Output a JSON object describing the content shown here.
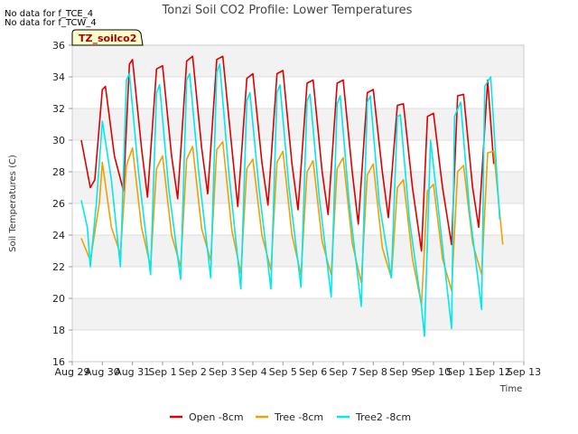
{
  "chart_data": {
    "type": "line",
    "title": "Tonzi Soil CO2 Profile: Lower Temperatures",
    "xlabel": "Time",
    "ylabel": "Soil Temperatures (C)",
    "ylim": [
      16,
      36
    ],
    "yticks": [
      16,
      18,
      20,
      22,
      24,
      26,
      28,
      30,
      32,
      34,
      36
    ],
    "x_unit": "days since Aug 29",
    "xlim": [
      0,
      15
    ],
    "xtick_labels": [
      "Aug 29",
      "Aug 30",
      "Aug 31",
      "Sep 1",
      "Sep 2",
      "Sep 3",
      "Sep 4",
      "Sep 5",
      "Sep 6",
      "Sep 7",
      "Sep 8",
      "Sep 9",
      "Sep 10",
      "Sep 11",
      "Sep 12",
      "Sep 13"
    ],
    "grid": true,
    "banded_background": true,
    "legend_position": "bottom-center",
    "no_data_notes": [
      "No data for f_TCE_4",
      "No data for f_TCW_4"
    ],
    "site_label": "TZ_soilco2",
    "series": [
      {
        "name": "Open -8cm",
        "color": "#dd0000",
        "x": [
          0.3,
          0.6,
          0.75,
          1.0,
          1.1,
          1.4,
          1.7,
          1.9,
          2.0,
          2.3,
          2.5,
          2.8,
          3.0,
          3.3,
          3.5,
          3.8,
          4.0,
          4.3,
          4.5,
          4.8,
          5.0,
          5.3,
          5.5,
          5.8,
          6.0,
          6.3,
          6.5,
          6.8,
          7.0,
          7.3,
          7.5,
          7.8,
          8.0,
          8.3,
          8.5,
          8.8,
          9.0,
          9.3,
          9.5,
          9.8,
          10.0,
          10.3,
          10.5,
          10.8,
          11.0,
          11.3,
          11.6,
          11.8,
          12.0,
          12.3,
          12.6,
          12.8,
          13.0,
          13.3,
          13.5,
          13.8,
          14.0
        ],
        "y": [
          30.0,
          27.0,
          27.5,
          33.2,
          33.4,
          29.0,
          26.8,
          34.8,
          35.1,
          29.5,
          26.4,
          34.5,
          34.7,
          29.0,
          26.3,
          35.0,
          35.3,
          29.5,
          26.6,
          35.1,
          35.3,
          29.5,
          25.8,
          33.9,
          34.2,
          28.6,
          25.9,
          34.2,
          34.4,
          28.5,
          25.6,
          33.6,
          33.8,
          28.0,
          25.3,
          33.6,
          33.8,
          28.0,
          24.7,
          33.0,
          33.2,
          28.0,
          25.1,
          32.2,
          32.3,
          27.0,
          23.0,
          31.5,
          31.7,
          27.0,
          23.4,
          32.8,
          32.9,
          27.0,
          24.5,
          33.8,
          28.5
        ]
      },
      {
        "name": "Tree -8cm",
        "color": "#f0a000",
        "x": [
          0.3,
          0.6,
          0.9,
          1.0,
          1.3,
          1.6,
          1.8,
          2.0,
          2.3,
          2.6,
          2.8,
          3.0,
          3.3,
          3.6,
          3.8,
          4.0,
          4.3,
          4.6,
          4.8,
          5.0,
          5.3,
          5.6,
          5.8,
          6.0,
          6.3,
          6.6,
          6.8,
          7.0,
          7.3,
          7.6,
          7.8,
          8.0,
          8.3,
          8.6,
          8.8,
          9.0,
          9.3,
          9.6,
          9.8,
          10.0,
          10.3,
          10.6,
          10.8,
          11.0,
          11.3,
          11.6,
          11.8,
          12.0,
          12.3,
          12.6,
          12.8,
          13.0,
          13.3,
          13.6,
          13.8,
          14.0,
          14.3
        ],
        "y": [
          23.8,
          22.4,
          26.0,
          28.6,
          24.5,
          22.8,
          28.4,
          29.5,
          24.5,
          22.0,
          28.2,
          29.0,
          24.0,
          22.0,
          28.8,
          29.6,
          24.4,
          22.4,
          29.4,
          29.9,
          24.3,
          21.6,
          28.2,
          28.8,
          24.0,
          21.8,
          28.6,
          29.3,
          24.0,
          21.5,
          28.0,
          28.7,
          23.6,
          21.5,
          28.2,
          28.9,
          23.5,
          21.0,
          27.8,
          28.5,
          23.2,
          21.3,
          27.0,
          27.5,
          22.5,
          19.6,
          26.8,
          27.2,
          22.5,
          20.5,
          28.0,
          28.4,
          23.5,
          21.5,
          29.2,
          29.3,
          23.4
        ]
      },
      {
        "name": "Tree2 -8cm",
        "color": "#00e8f0",
        "x": [
          0.3,
          0.5,
          0.6,
          0.8,
          1.0,
          1.3,
          1.6,
          1.8,
          1.9,
          2.2,
          2.6,
          2.8,
          2.9,
          3.2,
          3.6,
          3.8,
          3.9,
          4.2,
          4.6,
          4.8,
          4.9,
          5.2,
          5.6,
          5.8,
          5.9,
          6.2,
          6.6,
          6.8,
          6.9,
          7.2,
          7.6,
          7.8,
          7.9,
          8.2,
          8.6,
          8.8,
          8.9,
          9.2,
          9.6,
          9.8,
          9.9,
          10.2,
          10.6,
          10.8,
          10.9,
          11.2,
          11.6,
          11.7,
          11.9,
          12.2,
          12.6,
          12.7,
          12.9,
          13.2,
          13.6,
          13.7,
          13.9,
          14.2
        ],
        "y": [
          26.2,
          24.5,
          22.0,
          26.0,
          31.2,
          27.5,
          22.0,
          33.8,
          34.2,
          28.0,
          21.5,
          33.0,
          33.5,
          27.0,
          21.2,
          33.8,
          34.2,
          28.0,
          21.3,
          34.3,
          34.8,
          28.0,
          20.6,
          32.5,
          33.0,
          27.0,
          20.6,
          33.0,
          33.5,
          27.0,
          20.7,
          32.5,
          32.9,
          26.5,
          20.1,
          32.3,
          32.8,
          26.0,
          19.5,
          32.4,
          32.8,
          26.0,
          21.3,
          31.5,
          31.6,
          25.0,
          19.5,
          17.6,
          30.0,
          25.0,
          18.1,
          31.5,
          32.4,
          25.5,
          19.3,
          33.4,
          34.0,
          25.0
        ]
      }
    ]
  }
}
